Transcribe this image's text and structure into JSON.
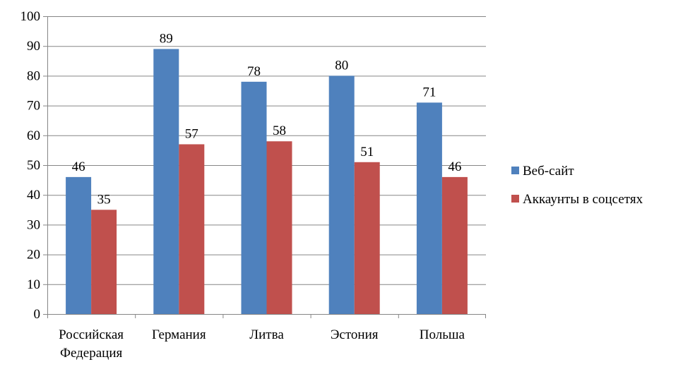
{
  "chart_data": {
    "type": "bar",
    "title": "",
    "xlabel": "",
    "ylabel": "",
    "categories": [
      [
        "Российская",
        "Федерация"
      ],
      [
        "Германия"
      ],
      [
        "Литва"
      ],
      [
        "Эстония"
      ],
      [
        "Польша"
      ]
    ],
    "series": [
      {
        "name": "Веб-сайт",
        "color": "#4F81BD",
        "values": [
          46,
          89,
          78,
          80,
          71
        ]
      },
      {
        "name": "Аккаунты в соцсетях",
        "color": "#C0504D",
        "values": [
          35,
          57,
          58,
          51,
          46
        ]
      }
    ],
    "ylim": [
      0,
      100
    ],
    "yticks": [
      "0",
      "10",
      "20",
      "30",
      "40",
      "50",
      "60",
      "70",
      "80",
      "90",
      "100"
    ],
    "grid": true,
    "legend_position": "right"
  }
}
